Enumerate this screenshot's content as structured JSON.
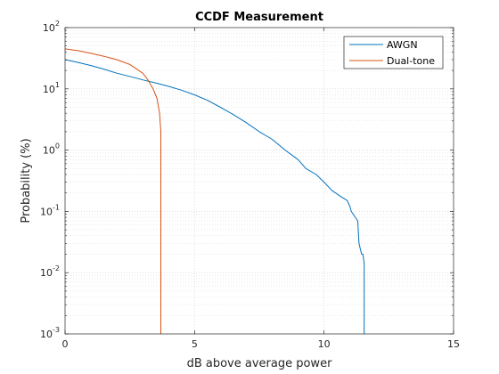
{
  "chart_data": {
    "type": "line",
    "title": "CCDF Measurement",
    "xlabel": "dB above average power",
    "ylabel": "Probability (%)",
    "xlim": [
      0,
      15
    ],
    "ylim": [
      0.001,
      100
    ],
    "yscale": "log",
    "grid": true,
    "minor_grid": true,
    "legend_position": "top-right",
    "x_ticks": [
      0,
      5,
      10,
      15
    ],
    "x_tick_labels": [
      "0",
      "5",
      "10",
      "15"
    ],
    "y_ticks": [
      0.001,
      0.01,
      0.1,
      1,
      10,
      100
    ],
    "y_tick_labels": [
      {
        "base": "10",
        "exp": "-3"
      },
      {
        "base": "10",
        "exp": "-2"
      },
      {
        "base": "10",
        "exp": "-1"
      },
      {
        "base": "10",
        "exp": "0"
      },
      {
        "base": "10",
        "exp": "1"
      },
      {
        "base": "10",
        "exp": "2"
      }
    ],
    "series": [
      {
        "name": "AWGN",
        "color": "#0072bd",
        "x": [
          0,
          0.5,
          1,
          1.5,
          2,
          2.5,
          3,
          3.5,
          4,
          4.5,
          5,
          5.5,
          6,
          6.5,
          7,
          7.5,
          8,
          8.5,
          9,
          9.3,
          9.7,
          10.0,
          10.3,
          10.6,
          10.9,
          11.0,
          11.05,
          11.3,
          11.35,
          11.45,
          11.5,
          11.55,
          11.55
        ],
        "y": [
          30,
          27,
          24,
          21,
          18,
          16,
          14,
          12.5,
          11,
          9.5,
          8,
          6.5,
          5,
          3.8,
          2.8,
          2.0,
          1.5,
          1.0,
          0.7,
          0.5,
          0.4,
          0.3,
          0.22,
          0.18,
          0.15,
          0.12,
          0.1,
          0.07,
          0.03,
          0.02,
          0.02,
          0.014,
          0.001
        ]
      },
      {
        "name": "Dual-tone",
        "color": "#d95319",
        "x": [
          0,
          0.5,
          1,
          1.5,
          2,
          2.5,
          3,
          3.2,
          3.4,
          3.55,
          3.65,
          3.7,
          3.7
        ],
        "y": [
          45,
          42,
          38,
          34,
          30,
          25,
          18,
          14,
          10,
          7,
          4,
          2,
          0.001
        ]
      }
    ]
  }
}
